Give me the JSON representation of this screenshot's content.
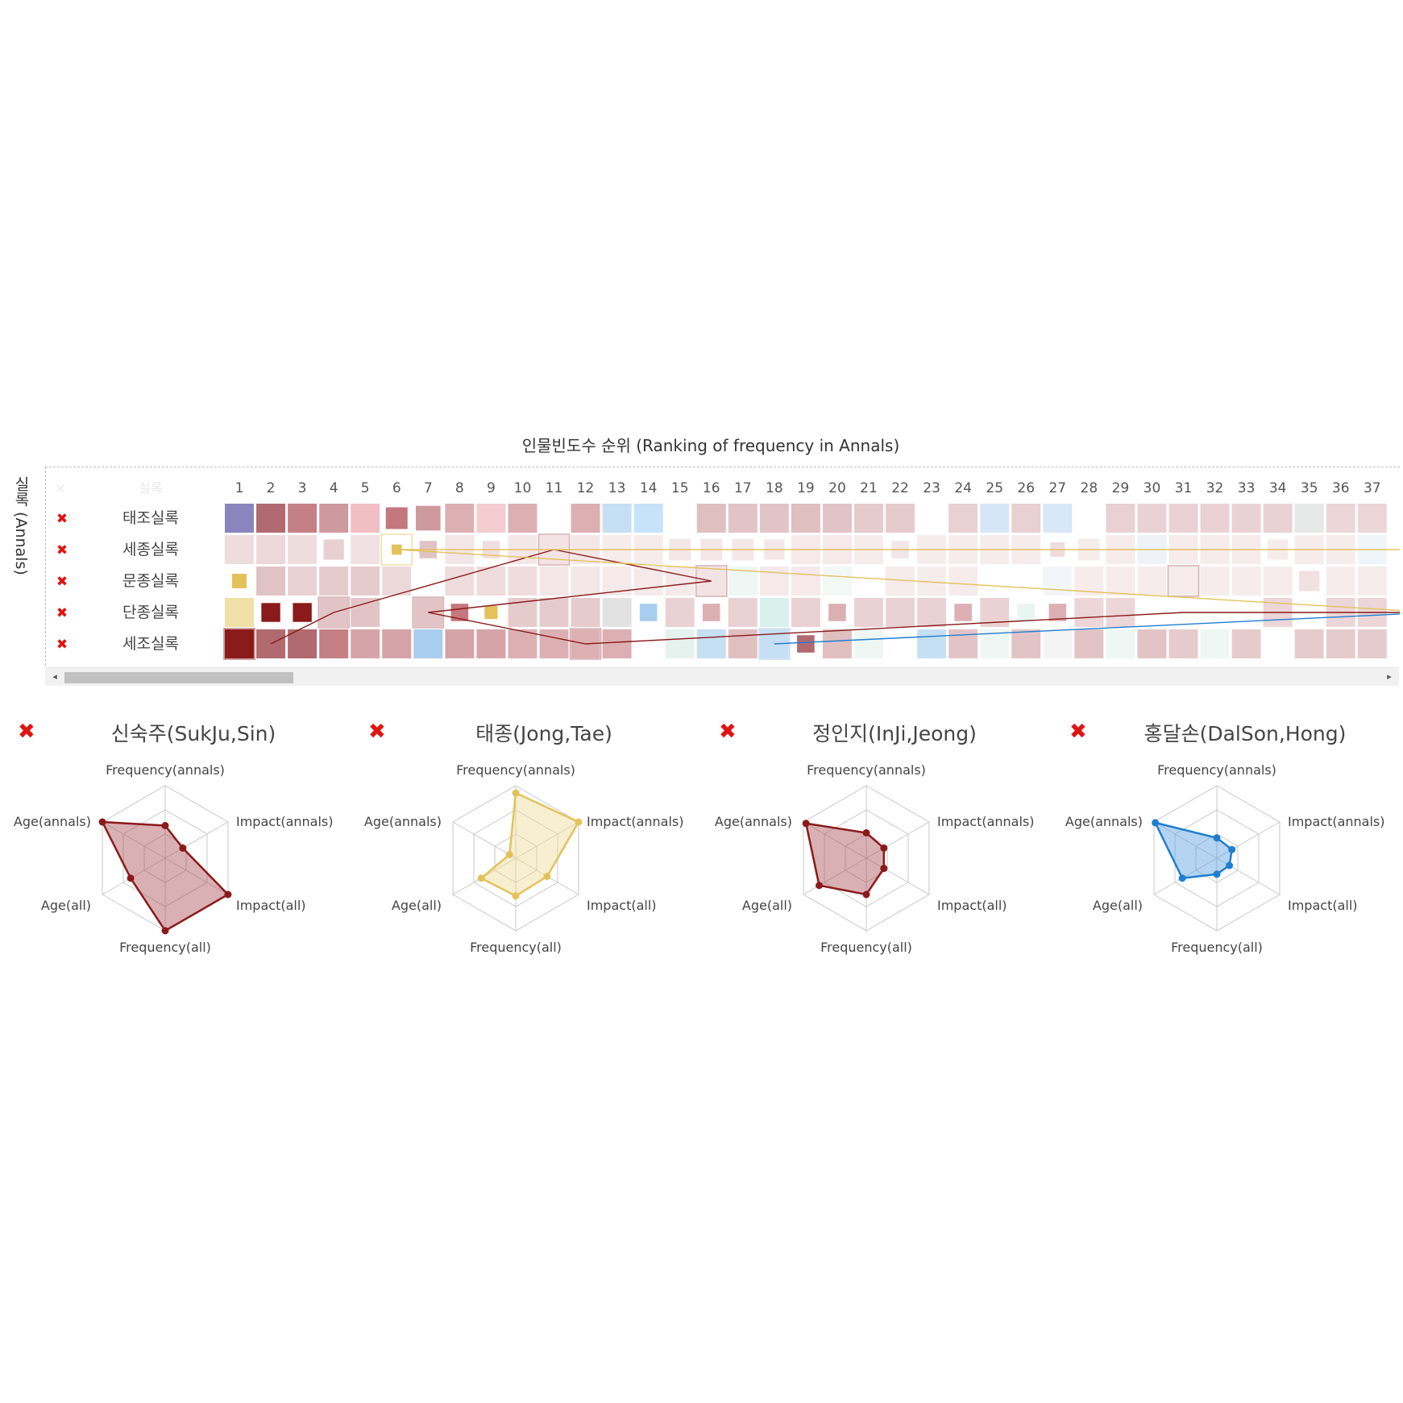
{
  "chart_data": [
    {
      "type": "heatmap",
      "title": "인물빈도수 순위 (Ranking of frequency in Annals)",
      "ylabel": "실록 (Annals)",
      "header_close": "×",
      "header_row_label": "실록",
      "close_icon": "✖",
      "columns": [
        "1",
        "2",
        "3",
        "4",
        "5",
        "6",
        "7",
        "8",
        "9",
        "10",
        "11",
        "12",
        "13",
        "14",
        "15",
        "16",
        "17",
        "18",
        "19",
        "20",
        "21",
        "22",
        "23",
        "24",
        "25",
        "26",
        "27",
        "28",
        "29",
        "30",
        "31",
        "32",
        "33",
        "34",
        "35",
        "36",
        "37"
      ],
      "rows": [
        {
          "name": "태조실록",
          "cells": [
            {
              "c": "#8a85bd",
              "a": 1
            },
            {
              "c": "#b06a70",
              "a": 1
            },
            {
              "c": "#c48085",
              "a": 1
            },
            {
              "c": "#cf9a9e",
              "a": 1
            },
            {
              "c": "#f1bfc3",
              "a": 1
            },
            {
              "c": "#c4787e",
              "a": 1,
              "s": 0.75
            },
            {
              "c": "#cf9a9e",
              "a": 1,
              "s": 0.85
            },
            {
              "c": "#dcb0b3",
              "a": 1
            },
            {
              "c": "#f4cdd0",
              "a": 1
            },
            {
              "c": "#dcb0b3",
              "a": 1
            },
            null,
            {
              "c": "#dcb0b3",
              "a": 1
            },
            {
              "c": "#c6dff2",
              "a": 1
            },
            {
              "c": "#c6e3fb",
              "a": 1
            },
            null,
            {
              "c": "#e0bfc1",
              "a": 1
            },
            {
              "c": "#e3c4c6",
              "a": 1
            },
            {
              "c": "#e3c4c6",
              "a": 1
            },
            {
              "c": "#e0bfc1",
              "a": 1
            },
            {
              "c": "#e3c4c6",
              "a": 1
            },
            {
              "c": "#e6cbcd",
              "a": 1
            },
            {
              "c": "#e6cbcd",
              "a": 1
            },
            null,
            {
              "c": "#e9d0d2",
              "a": 1
            },
            {
              "c": "#d6e6f6",
              "a": 1
            },
            {
              "c": "#e9d0d2",
              "a": 1
            },
            {
              "c": "#d8e8f8",
              "a": 1
            },
            null,
            {
              "c": "#e9d0d2",
              "a": 1
            },
            {
              "c": "#ead2d4",
              "a": 1
            },
            {
              "c": "#ead2d4",
              "a": 1
            },
            {
              "c": "#ead2d4",
              "a": 1
            },
            {
              "c": "#ead2d4",
              "a": 1
            },
            {
              "c": "#ead2d4",
              "a": 1
            },
            {
              "c": "#e4e8e6",
              "a": 1
            },
            {
              "c": "#ecd6d8",
              "a": 1
            },
            {
              "c": "#ecd6d8",
              "a": 1
            }
          ]
        },
        {
          "name": "세종실록",
          "cells": [
            {
              "c": "#efdcdd",
              "a": 1
            },
            {
              "c": "#ecd8d9",
              "a": 1
            },
            {
              "c": "#efdcdd",
              "a": 1
            },
            {
              "c": "#e8d0d2",
              "a": 1,
              "s": 0.7
            },
            {
              "c": "#f1e1e2",
              "a": 1
            },
            {
              "c": "#e3c25a",
              "a": 1,
              "s": 0.35,
              "hl": "#e3c25a"
            },
            {
              "c": "#e0c3c5",
              "a": 1,
              "s": 0.6
            },
            {
              "c": "#f3e6e7",
              "a": 1
            },
            {
              "c": "#f0dfe0",
              "a": 1,
              "s": 0.6
            },
            {
              "c": "#f4e7e8",
              "a": 1
            },
            {
              "c": "#f3e3e4",
              "a": 1,
              "hl": "#b06a70"
            },
            {
              "c": "#f4e7e8",
              "a": 1
            },
            {
              "c": "#f6ecec",
              "a": 1
            },
            {
              "c": "#f6ecec",
              "a": 1
            },
            {
              "c": "#f4e7e8",
              "a": 1,
              "s": 0.75
            },
            {
              "c": "#f4e7e8",
              "a": 1,
              "s": 0.75
            },
            {
              "c": "#f4e7e8",
              "a": 1,
              "s": 0.75
            },
            {
              "c": "#f4e7e8",
              "a": 1,
              "s": 0.7
            },
            {
              "c": "#f5e9ea",
              "a": 1
            },
            {
              "c": "#f5e9ea",
              "a": 1
            },
            {
              "c": "#f6ecec",
              "a": 1
            },
            {
              "c": "#f3e6e7",
              "a": 1,
              "s": 0.6
            },
            {
              "c": "#f6ecec",
              "a": 1
            },
            {
              "c": "#f6ecec",
              "a": 1
            },
            {
              "c": "#f6ecec",
              "a": 1
            },
            {
              "c": "#f6ecec",
              "a": 1
            },
            {
              "c": "#efdcdd",
              "a": 1,
              "s": 0.5
            },
            {
              "c": "#f6ecec",
              "a": 1,
              "s": 0.75
            },
            {
              "c": "#f6ecec",
              "a": 1
            },
            {
              "c": "#eef3f8",
              "a": 1
            },
            {
              "c": "#f6ecec",
              "a": 1
            },
            {
              "c": "#f6ecec",
              "a": 1
            },
            {
              "c": "#f6ecec",
              "a": 1
            },
            {
              "c": "#f6ecec",
              "a": 1,
              "s": 0.7
            },
            {
              "c": "#f6ecec",
              "a": 1
            },
            {
              "c": "#f6ecec",
              "a": 1
            },
            {
              "c": "#eef5fb",
              "a": 1
            }
          ]
        },
        {
          "name": "문종실록",
          "cells": [
            {
              "c": "#e3c25a",
              "a": 1,
              "s": 0.5
            },
            {
              "c": "#e0c3c5",
              "a": 1
            },
            {
              "c": "#ead2d4",
              "a": 1
            },
            {
              "c": "#e6cbcd",
              "a": 1
            },
            {
              "c": "#e6cbcd",
              "a": 1
            },
            {
              "c": "#ecd8d9",
              "a": 1
            },
            null,
            {
              "c": "#efdcdd",
              "a": 1
            },
            {
              "c": "#efdcdd",
              "a": 1
            },
            {
              "c": "#efdcdd",
              "a": 1
            },
            {
              "c": "#f3e6e7",
              "a": 1
            },
            {
              "c": "#f3e6e7",
              "a": 1
            },
            {
              "c": "#f5e9ea",
              "a": 1
            },
            {
              "c": "#f5e9ea",
              "a": 1
            },
            {
              "c": "#f5e9ea",
              "a": 1
            },
            {
              "c": "#f3e3e4",
              "a": 1,
              "hl": "#b06a70"
            },
            {
              "c": "#eef7f4",
              "a": 1
            },
            {
              "c": "#f5e9ea",
              "a": 1
            },
            {
              "c": "#f5e9ea",
              "a": 1
            },
            {
              "c": "#f2f8f5",
              "a": 1
            },
            null,
            {
              "c": "#f6ecec",
              "a": 1
            },
            {
              "c": "#f6ecec",
              "a": 1
            },
            {
              "c": "#f6ecec",
              "a": 1
            },
            null,
            null,
            {
              "c": "#f2f6fa",
              "a": 1
            },
            {
              "c": "#f6ecec",
              "a": 1
            },
            {
              "c": "#f6ecec",
              "a": 1
            },
            {
              "c": "#f6ecec",
              "a": 1
            },
            {
              "c": "#f6ecec",
              "a": 1,
              "hl": "#b06a70"
            },
            {
              "c": "#f6ecec",
              "a": 1
            },
            {
              "c": "#f6ecec",
              "a": 1
            },
            {
              "c": "#f6ecec",
              "a": 1
            },
            {
              "c": "#f1e1e2",
              "a": 1,
              "s": 0.7
            },
            {
              "c": "#f6ecec",
              "a": 1
            },
            {
              "c": "#f6ecec",
              "a": 1
            }
          ]
        },
        {
          "name": "단종실록",
          "cells": [
            {
              "c": "#efe0a8",
              "a": 1
            },
            {
              "c": "#8b1a1a",
              "a": 1,
              "s": 0.65
            },
            {
              "c": "#8b1a1a",
              "a": 1,
              "s": 0.65
            },
            {
              "c": "#e3c4c6",
              "a": 1,
              "hl": "#b06a70"
            },
            {
              "c": "#e3c4c6",
              "a": 1
            },
            null,
            {
              "c": "#e3c4c6",
              "a": 1,
              "hl": "#b06a70"
            },
            {
              "c": "#c4787e",
              "a": 1,
              "s": 0.6
            },
            {
              "c": "#e3c25a",
              "a": 1,
              "s": 0.45
            },
            {
              "c": "#e6cbcd",
              "a": 1
            },
            {
              "c": "#e6cbcd",
              "a": 1
            },
            {
              "c": "#e6cbcd",
              "a": 1
            },
            {
              "c": "#e2e2e2",
              "a": 1
            },
            {
              "c": "#a8cdee",
              "a": 1,
              "s": 0.6
            },
            {
              "c": "#ead2d4",
              "a": 1
            },
            {
              "c": "#dcb0b3",
              "a": 1,
              "s": 0.6
            },
            {
              "c": "#ead2d4",
              "a": 1
            },
            {
              "c": "#d9f1ec",
              "a": 1
            },
            {
              "c": "#ead2d4",
              "a": 1
            },
            {
              "c": "#dcb0b3",
              "a": 1,
              "s": 0.6
            },
            {
              "c": "#ead2d4",
              "a": 1
            },
            {
              "c": "#ead2d4",
              "a": 1
            },
            {
              "c": "#ead2d4",
              "a": 1
            },
            {
              "c": "#dcb0b3",
              "a": 1,
              "s": 0.6
            },
            {
              "c": "#ead2d4",
              "a": 1
            },
            {
              "c": "#e8f5f1",
              "a": 1,
              "s": 0.6
            },
            {
              "c": "#dcb0b3",
              "a": 1,
              "s": 0.6
            },
            {
              "c": "#ecd6d8",
              "a": 1
            },
            {
              "c": "#ecd6d8",
              "a": 1
            },
            null,
            null,
            null,
            null,
            {
              "c": "#ecd6d8",
              "a": 1
            },
            null,
            {
              "c": "#ecd6d8",
              "a": 1
            },
            {
              "c": "#ecd6d8",
              "a": 1
            }
          ]
        },
        {
          "name": "세조실록",
          "cells": [
            {
              "c": "#8b1a1a",
              "a": 1,
              "hl": "#8b1a1a"
            },
            {
              "c": "#b06a70",
              "a": 1
            },
            {
              "c": "#b06a70",
              "a": 1
            },
            {
              "c": "#c48085",
              "a": 1
            },
            {
              "c": "#d6a4a8",
              "a": 1
            },
            {
              "c": "#d6a4a8",
              "a": 1
            },
            {
              "c": "#a8cdee",
              "a": 1
            },
            {
              "c": "#d6a4a8",
              "a": 1
            },
            {
              "c": "#d6a4a8",
              "a": 1
            },
            {
              "c": "#dcb0b3",
              "a": 1
            },
            {
              "c": "#dcb0b3",
              "a": 1
            },
            {
              "c": "#dcb0b3",
              "a": 1,
              "hl": "#b06a70"
            },
            {
              "c": "#dcb0b3",
              "a": 1
            },
            null,
            {
              "c": "#e6f2ee",
              "a": 1
            },
            {
              "c": "#c6dff2",
              "a": 1
            },
            {
              "c": "#e0bfc1",
              "a": 1
            },
            {
              "c": "#c6dff2",
              "a": 1,
              "hl": "#9cc2e4"
            },
            {
              "c": "#b06a70",
              "a": 1,
              "s": 0.6
            },
            {
              "c": "#e0bfc1",
              "a": 1
            },
            {
              "c": "#eef7f3",
              "a": 1
            },
            null,
            {
              "c": "#c6dff2",
              "a": 1
            },
            {
              "c": "#e3c4c6",
              "a": 1
            },
            {
              "c": "#eef7f3",
              "a": 1
            },
            {
              "c": "#e3c4c6",
              "a": 1
            },
            {
              "c": "#f4f4f4",
              "a": 1
            },
            {
              "c": "#e3c4c6",
              "a": 1
            },
            {
              "c": "#eef7f3",
              "a": 1
            },
            {
              "c": "#e3c4c6",
              "a": 1
            },
            {
              "c": "#e6cbcd",
              "a": 1
            },
            {
              "c": "#eef7f3",
              "a": 1
            },
            {
              "c": "#e6cbcd",
              "a": 1
            },
            null,
            {
              "c": "#e6cbcd",
              "a": 1
            },
            {
              "c": "#e6cbcd",
              "a": 1
            },
            {
              "c": "#e6cbcd",
              "a": 1
            }
          ]
        }
      ],
      "tracks": [
        {
          "color": "#8b1a1a",
          "points": [
            [
              4,
              1
            ],
            [
              3,
              3
            ],
            [
              1,
              10
            ]
          ]
        },
        {
          "color": "#8b1a1a",
          "points": [
            [
              1,
              10
            ],
            [
              2,
              15
            ],
            [
              3,
              6
            ],
            [
              4,
              11
            ],
            [
              3,
              30
            ],
            [
              3,
              37.9
            ]
          ]
        },
        {
          "color": "#e3c25a",
          "points": [
            [
              1,
              5
            ],
            [
              3,
              37.9
            ]
          ]
        },
        {
          "color": "#e3c25a",
          "points": [
            [
              1,
              5
            ],
            [
              1,
              37.9
            ]
          ]
        },
        {
          "color": "#1f7ed0",
          "points": [
            [
              4,
              17
            ],
            [
              3,
              37.9
            ]
          ]
        }
      ]
    },
    {
      "type": "radar",
      "name": "신숙주(SukJu,Sin)",
      "color": "#8b1a1a",
      "fill": "rgba(170,80,88,0.45)",
      "axes": [
        "Frequency(annals)",
        "Impact(annals)",
        "Impact(all)",
        "Frequency(all)",
        "Age(all)",
        "Age(annals)"
      ],
      "values": [
        0.45,
        0.28,
        1.0,
        1.0,
        0.55,
        1.0
      ],
      "max": 1
    },
    {
      "type": "radar",
      "name": "태종(Jong,Tae)",
      "color": "#e3c25a",
      "fill": "rgba(240,220,150,0.45)",
      "axes": [
        "Frequency(annals)",
        "Impact(annals)",
        "Impact(all)",
        "Frequency(all)",
        "Age(all)",
        "Age(annals)"
      ],
      "values": [
        0.9,
        1.0,
        0.5,
        0.52,
        0.55,
        0.1
      ],
      "max": 1
    },
    {
      "type": "radar",
      "name": "정인지(InJi,Jeong)",
      "color": "#8b1a1a",
      "fill": "rgba(170,80,88,0.45)",
      "axes": [
        "Frequency(annals)",
        "Impact(annals)",
        "Impact(all)",
        "Frequency(all)",
        "Age(all)",
        "Age(annals)"
      ],
      "values": [
        0.35,
        0.28,
        0.28,
        0.5,
        0.75,
        0.96
      ],
      "max": 1
    },
    {
      "type": "radar",
      "name": "홍달손(DalSon,Hong)",
      "color": "#1f7ed0",
      "fill": "rgba(90,160,225,0.45)",
      "axes": [
        "Frequency(annals)",
        "Impact(annals)",
        "Impact(all)",
        "Frequency(all)",
        "Age(all)",
        "Age(annals)"
      ],
      "values": [
        0.28,
        0.24,
        0.2,
        0.22,
        0.55,
        0.98
      ],
      "max": 1
    }
  ],
  "scrollbar": {
    "left_arrow": "◂",
    "right_arrow": "▸"
  }
}
